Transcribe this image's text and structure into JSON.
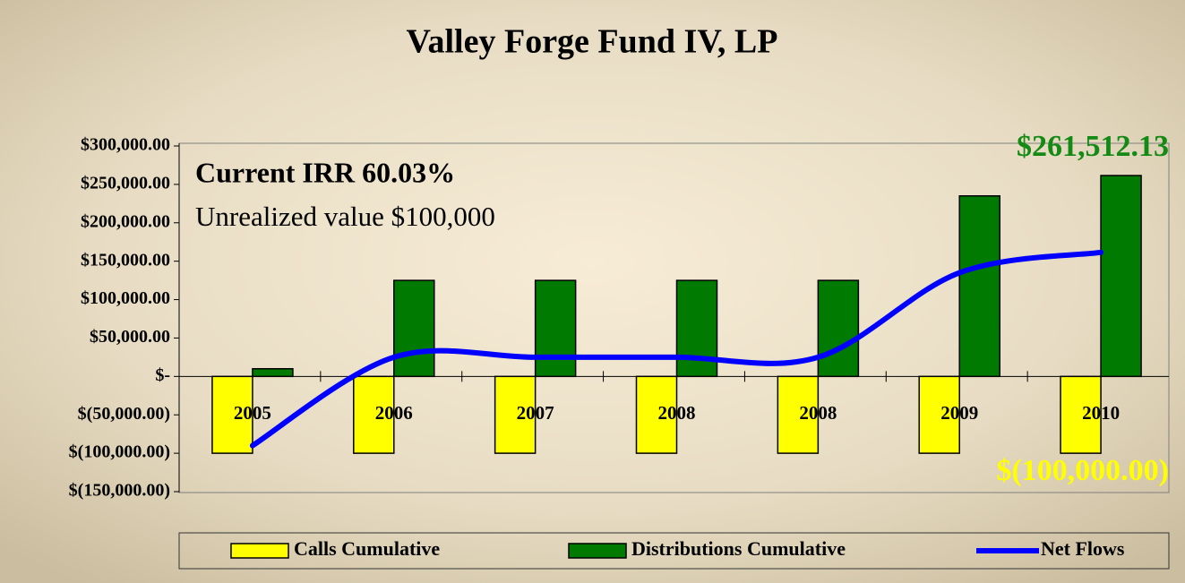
{
  "chart_data": {
    "type": "bar_line",
    "title": "Valley Forge Fund IV, LP",
    "annotations": [
      "Current IRR 60.03%",
      "Unrealized value $100,000"
    ],
    "categories": [
      "2005",
      "2006",
      "2007",
      "2008",
      "2008",
      "2009",
      "2010"
    ],
    "series": [
      {
        "name": "Calls Cumulative",
        "type": "bar",
        "color": "#ffff00",
        "values": [
          -100000,
          -100000,
          -100000,
          -100000,
          -100000,
          -100000,
          -100000
        ],
        "value_labels": [
          null,
          null,
          null,
          null,
          null,
          null,
          "$(100,000.00)"
        ],
        "label_color": "#ffff00"
      },
      {
        "name": "Distributions Cumulative",
        "type": "bar",
        "color": "#007a00",
        "values": [
          10000,
          125000,
          125000,
          125000,
          125000,
          235000,
          261512.13
        ],
        "value_labels": [
          null,
          null,
          null,
          null,
          null,
          null,
          "$261,512.13"
        ],
        "label_color": "#138a13"
      },
      {
        "name": "Net Flows",
        "type": "line",
        "color": "#0000ff",
        "values": [
          -90000,
          25000,
          25000,
          25000,
          25000,
          135000,
          161512.13
        ]
      }
    ],
    "ylim": [
      -150000,
      300000
    ],
    "yticks": [
      {
        "value": -150000,
        "label": "$(150,000.00)"
      },
      {
        "value": -100000,
        "label": "$(100,000.00)"
      },
      {
        "value": -50000,
        "label": "$(50,000.00)"
      },
      {
        "value": 0,
        "label": "$-"
      },
      {
        "value": 50000,
        "label": "$50,000.00"
      },
      {
        "value": 100000,
        "label": "$100,000.00"
      },
      {
        "value": 150000,
        "label": "$150,000.00"
      },
      {
        "value": 200000,
        "label": "$200,000.00"
      },
      {
        "value": 250000,
        "label": "$250,000.00"
      },
      {
        "value": 300000,
        "label": "$300,000.00"
      }
    ],
    "grid": false,
    "legend": "bottom"
  }
}
